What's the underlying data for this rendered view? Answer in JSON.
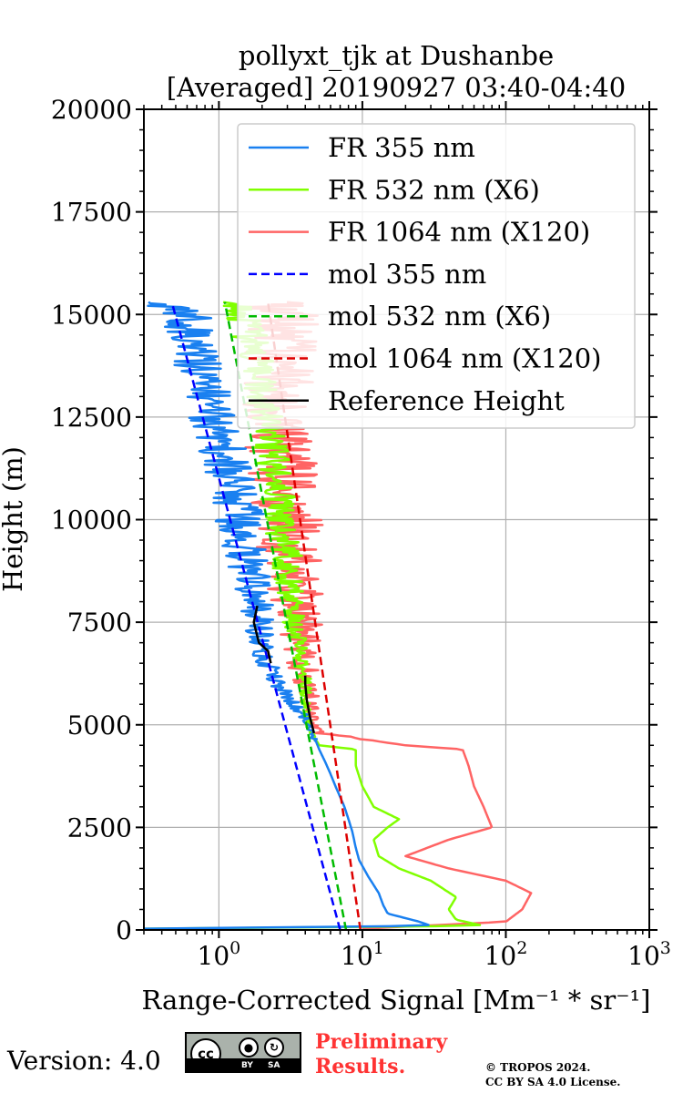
{
  "chart_data": {
    "type": "line",
    "title_line1": "pollyxt_tjk at Dushanbe",
    "title_line2": "[Averaged] 20190927 03:40-04:40",
    "xlabel": "Range-Corrected Signal [Mm⁻¹ * sr⁻¹]",
    "ylabel": "Height (m)",
    "xscale": "log",
    "xlim": [
      0.3,
      1000
    ],
    "ylim": [
      0,
      20000
    ],
    "grid": true,
    "legend_location": "top-right",
    "yticks": [
      0,
      2500,
      5000,
      7500,
      10000,
      12500,
      15000,
      17500,
      20000
    ],
    "ytick_labels": [
      "0",
      "2500",
      "5000",
      "7500",
      "10000",
      "12500",
      "15000",
      "17500",
      "20000"
    ],
    "xticks": [
      1,
      10,
      100,
      1000
    ],
    "xtick_labels": [
      {
        "base": "10",
        "exp": "0"
      },
      {
        "base": "10",
        "exp": "1"
      },
      {
        "base": "10",
        "exp": "2"
      },
      {
        "base": "10",
        "exp": "3"
      }
    ],
    "series": [
      {
        "name": "FR 355 nm",
        "color": "#1a80f0",
        "style": "solid",
        "noisy": true,
        "points": [
          [
            0.3,
            30
          ],
          [
            30,
            100
          ],
          [
            25,
            200
          ],
          [
            15,
            400
          ],
          [
            14,
            600
          ],
          [
            13,
            900
          ],
          [
            11,
            1300
          ],
          [
            9.5,
            1700
          ],
          [
            9,
            2000
          ],
          [
            8.5,
            2400
          ],
          [
            8,
            2700
          ],
          [
            7.5,
            3000
          ],
          [
            6.5,
            3500
          ],
          [
            6,
            3800
          ],
          [
            5.5,
            4100
          ],
          [
            5,
            4400
          ],
          [
            4.5,
            4800
          ],
          [
            4.2,
            5000
          ],
          [
            3.7,
            5300
          ],
          [
            3.2,
            5600
          ],
          [
            2.6,
            6000
          ],
          [
            2.2,
            6500
          ],
          [
            2,
            7000
          ],
          [
            1.9,
            7500
          ],
          [
            1.8,
            8000
          ],
          [
            1.6,
            9000
          ],
          [
            1.4,
            10000
          ],
          [
            1.2,
            11000
          ],
          [
            1.0,
            12000
          ],
          [
            0.85,
            13000
          ],
          [
            0.7,
            14000
          ],
          [
            0.6,
            15000
          ],
          [
            0.4,
            15300
          ]
        ]
      },
      {
        "name": "FR 532 nm (X6)",
        "color": "#80ff00",
        "style": "solid",
        "noisy": true,
        "points": [
          [
            0.3,
            30
          ],
          [
            70,
            100
          ],
          [
            45,
            250
          ],
          [
            40,
            500
          ],
          [
            45,
            800
          ],
          [
            30,
            1200
          ],
          [
            18,
            1500
          ],
          [
            13,
            1800
          ],
          [
            12,
            2200
          ],
          [
            15,
            2500
          ],
          [
            18,
            2700
          ],
          [
            12,
            3000
          ],
          [
            10,
            3500
          ],
          [
            9,
            4000
          ],
          [
            9,
            4400
          ],
          [
            5,
            4500
          ],
          [
            4.5,
            4800
          ],
          [
            4.2,
            5000
          ],
          [
            4,
            6000
          ],
          [
            3.5,
            7000
          ],
          [
            3.2,
            8000
          ],
          [
            3,
            9000
          ],
          [
            2.7,
            10000
          ],
          [
            2.5,
            11000
          ],
          [
            2.2,
            12000
          ],
          [
            2,
            13000
          ],
          [
            1.8,
            14000
          ],
          [
            1.5,
            15000
          ],
          [
            1.3,
            15300
          ]
        ]
      },
      {
        "name": "FR 1064 nm (X120)",
        "color": "#ff6464",
        "style": "solid",
        "noisy": true,
        "points": [
          [
            10,
            30
          ],
          [
            100,
            200
          ],
          [
            130,
            500
          ],
          [
            150,
            900
          ],
          [
            100,
            1200
          ],
          [
            40,
            1500
          ],
          [
            20,
            1800
          ],
          [
            40,
            2200
          ],
          [
            80,
            2500
          ],
          [
            70,
            3000
          ],
          [
            60,
            3500
          ],
          [
            55,
            4000
          ],
          [
            50,
            4400
          ],
          [
            20,
            4500
          ],
          [
            5,
            4800
          ],
          [
            4.5,
            5000
          ],
          [
            4,
            6000
          ],
          [
            3.8,
            7000
          ],
          [
            3.5,
            8000
          ],
          [
            3.2,
            9000
          ],
          [
            3,
            10000
          ],
          [
            2.8,
            11000
          ],
          [
            2.6,
            12000
          ],
          [
            2.5,
            13000
          ],
          [
            2.7,
            14000
          ],
          [
            2.8,
            15000
          ],
          [
            2.5,
            15300
          ]
        ]
      },
      {
        "name": "mol 355 nm",
        "color": "#0000ff",
        "style": "dashed",
        "noisy": false,
        "points": [
          [
            7,
            0
          ],
          [
            0.47,
            15300
          ]
        ]
      },
      {
        "name": "mol 532 nm (X6)",
        "color": "#00bb00",
        "style": "dashed",
        "noisy": false,
        "points": [
          [
            7.7,
            0
          ],
          [
            1.1,
            15300
          ]
        ]
      },
      {
        "name": "mol 1064 nm (X120)",
        "color": "#dd0000",
        "style": "dashed",
        "noisy": false,
        "points": [
          [
            9.7,
            0
          ],
          [
            2.2,
            15300
          ]
        ]
      },
      {
        "name": "Reference Height",
        "color": "#000000",
        "style": "solid",
        "noisy": false,
        "points": [],
        "segments": [
          [
            [
              2.3,
              6500
            ],
            [
              2.2,
              6800
            ],
            [
              1.9,
              7000
            ],
            [
              1.75,
              7500
            ],
            [
              1.85,
              7900
            ]
          ],
          [
            [
              4.6,
              4800
            ],
            [
              4.3,
              5200
            ],
            [
              4.1,
              5600
            ],
            [
              4.0,
              6000
            ],
            [
              4.0,
              6200
            ]
          ]
        ]
      }
    ]
  },
  "footer": {
    "version": "Version: 4.0",
    "cc_label": "cc",
    "cc_by": "BY",
    "cc_sa": "SA",
    "preliminary_line1": "Preliminary",
    "preliminary_line2": "Results.",
    "copyright_line1": "© TROPOS 2024.",
    "copyright_line2": "CC BY SA 4.0 License."
  }
}
